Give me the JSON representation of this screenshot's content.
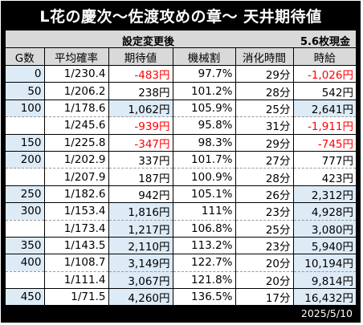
{
  "title": "L花の慶次〜佐渡攻めの章〜 天井期待値",
  "setting_label": "設定変更後",
  "exchange_rate": "5.6枚現金",
  "date": "2025/5/10",
  "colors": {
    "negative": "#ff0000",
    "highlight": "#ddebf7",
    "header_bg": "#d9d9d9",
    "title_bg": "#000000"
  },
  "columns": [
    "G数",
    "平均確率",
    "期待値",
    "機械割",
    "消化時間",
    "時給"
  ],
  "rows": [
    {
      "g": "0",
      "prob": "1/230.4",
      "ev": "-483円",
      "rate": "97.7%",
      "time": "29分",
      "wage": "-1,026円",
      "group_end": true
    },
    {
      "g": "50",
      "prob": "1/206.2",
      "ev": "238円",
      "rate": "101.2%",
      "time": "28分",
      "wage": "542円",
      "group_end": true
    },
    {
      "g": "100",
      "prob": "1/178.6",
      "ev": "1,062円",
      "rate": "105.9%",
      "time": "25分",
      "wage": "2,641円",
      "group_end": false
    },
    {
      "g": "",
      "prob": "1/245.6",
      "ev": "-939円",
      "rate": "95.8%",
      "time": "31分",
      "wage": "-1,911円",
      "group_end": true
    },
    {
      "g": "150",
      "prob": "1/225.8",
      "ev": "-347円",
      "rate": "98.3%",
      "time": "29分",
      "wage": "-745円",
      "group_end": true
    },
    {
      "g": "200",
      "prob": "1/202.9",
      "ev": "337円",
      "rate": "101.7%",
      "time": "27分",
      "wage": "777円",
      "group_end": false
    },
    {
      "g": "",
      "prob": "1/207.9",
      "ev": "187円",
      "rate": "100.9%",
      "time": "28分",
      "wage": "423円",
      "group_end": true
    },
    {
      "g": "250",
      "prob": "1/182.6",
      "ev": "942円",
      "rate": "105.1%",
      "time": "26分",
      "wage": "2,312円",
      "group_end": true
    },
    {
      "g": "300",
      "prob": "1/153.4",
      "ev": "1,816円",
      "rate": "111%",
      "time": "23分",
      "wage": "4,928円",
      "group_end": false
    },
    {
      "g": "",
      "prob": "1/173.4",
      "ev": "1,217円",
      "rate": "106.8%",
      "time": "25分",
      "wage": "3,080円",
      "group_end": true
    },
    {
      "g": "350",
      "prob": "1/143.5",
      "ev": "2,110円",
      "rate": "113.2%",
      "time": "23分",
      "wage": "5,940円",
      "group_end": true
    },
    {
      "g": "400",
      "prob": "1/108.7",
      "ev": "3,149円",
      "rate": "122.7%",
      "time": "20分",
      "wage": "10,194円",
      "group_end": false
    },
    {
      "g": "",
      "prob": "1/111.4",
      "ev": "3,067円",
      "rate": "121.8%",
      "time": "20分",
      "wage": "9,814円",
      "group_end": true
    },
    {
      "g": "450",
      "prob": "1/71.5",
      "ev": "4,260円",
      "rate": "136.5%",
      "time": "17分",
      "wage": "16,432円",
      "group_end": true
    }
  ]
}
